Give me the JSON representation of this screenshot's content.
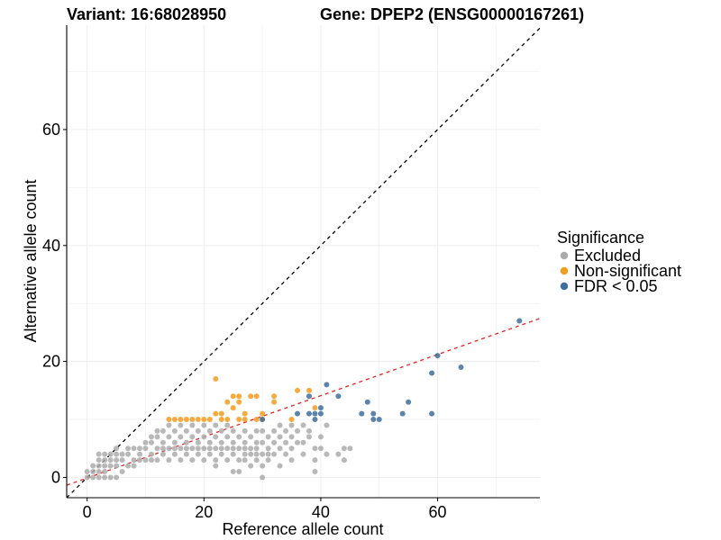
{
  "chart_data": {
    "type": "scatter",
    "title_variant": "Variant: 16:68028950",
    "title_gene": "Gene: DPEP2 (ENSG00000167261)",
    "xlabel": "Reference allele count",
    "ylabel": "Alternative allele count",
    "xlim": [
      -3.5,
      77.5
    ],
    "ylim": [
      -3.5,
      78
    ],
    "x_ticks": [
      0,
      20,
      40,
      60
    ],
    "y_ticks": [
      0,
      20,
      40,
      60
    ],
    "grid": true,
    "legend": {
      "title": "Significance",
      "position": "right",
      "entries": [
        {
          "label": "Excluded",
          "color": "#ababab"
        },
        {
          "label": "Non-significant",
          "color": "#f39c1f"
        },
        {
          "label": "FDR < 0.05",
          "color": "#3d6f9e"
        }
      ]
    },
    "reference_lines": [
      {
        "name": "identity-line",
        "slope": 1.0,
        "intercept": 0,
        "color": "#000000",
        "dash": "4,4"
      },
      {
        "name": "fitted-line",
        "slope": 0.355,
        "intercept": -0.1,
        "color": "#e8211a",
        "dash": "4,4"
      }
    ],
    "series": [
      {
        "name": "Non-significant",
        "color": "#f39c1f",
        "points": [
          [
            14,
            10
          ],
          [
            15,
            10
          ],
          [
            16,
            10
          ],
          [
            17,
            10
          ],
          [
            18,
            10
          ],
          [
            19,
            10
          ],
          [
            20,
            10
          ],
          [
            21,
            10
          ],
          [
            22,
            17
          ],
          [
            22,
            11
          ],
          [
            23,
            11
          ],
          [
            23,
            10
          ],
          [
            24,
            10
          ],
          [
            24,
            13
          ],
          [
            25,
            14
          ],
          [
            25,
            12
          ],
          [
            26,
            14
          ],
          [
            26,
            13
          ],
          [
            26,
            10
          ],
          [
            27,
            11
          ],
          [
            27,
            10
          ],
          [
            28,
            14
          ],
          [
            29,
            10
          ],
          [
            29,
            14
          ],
          [
            30,
            11
          ],
          [
            30,
            10
          ],
          [
            32,
            14
          ],
          [
            32,
            13
          ],
          [
            35,
            10
          ],
          [
            36,
            15
          ],
          [
            38,
            15
          ],
          [
            39,
            12
          ]
        ]
      },
      {
        "name": "FDR < 0.05",
        "color": "#3d6f9e",
        "points": [
          [
            30,
            10
          ],
          [
            36,
            11
          ],
          [
            38,
            14
          ],
          [
            38,
            11
          ],
          [
            39,
            11
          ],
          [
            39,
            10
          ],
          [
            40,
            11
          ],
          [
            40,
            12
          ],
          [
            41,
            16
          ],
          [
            43,
            14
          ],
          [
            47,
            11
          ],
          [
            48,
            13
          ],
          [
            49,
            11
          ],
          [
            49,
            10
          ],
          [
            50,
            10
          ],
          [
            54,
            11
          ],
          [
            55,
            13
          ],
          [
            59,
            11
          ],
          [
            59,
            18
          ],
          [
            60,
            21
          ],
          [
            64,
            19
          ],
          [
            74,
            27
          ]
        ]
      },
      {
        "name": "Excluded",
        "color": "#ababab",
        "points": [
          [
            0,
            0
          ],
          [
            0,
            1
          ],
          [
            1,
            0
          ],
          [
            1,
            1
          ],
          [
            1,
            2
          ],
          [
            2,
            0
          ],
          [
            2,
            1
          ],
          [
            2,
            2
          ],
          [
            2,
            3
          ],
          [
            2,
            4
          ],
          [
            3,
            0
          ],
          [
            3,
            1
          ],
          [
            3,
            2
          ],
          [
            3,
            3
          ],
          [
            3,
            4
          ],
          [
            4,
            0
          ],
          [
            4,
            2
          ],
          [
            4,
            3
          ],
          [
            4,
            4
          ],
          [
            5,
            0
          ],
          [
            5,
            2
          ],
          [
            5,
            3
          ],
          [
            5,
            4
          ],
          [
            5,
            5
          ],
          [
            6,
            1
          ],
          [
            6,
            3
          ],
          [
            6,
            4
          ],
          [
            7,
            2
          ],
          [
            7,
            4
          ],
          [
            7,
            5
          ],
          [
            8,
            2
          ],
          [
            8,
            3
          ],
          [
            8,
            5
          ],
          [
            9,
            3
          ],
          [
            9,
            4
          ],
          [
            9,
            5
          ],
          [
            10,
            3
          ],
          [
            10,
            5
          ],
          [
            10,
            6
          ],
          [
            11,
            3
          ],
          [
            11,
            4
          ],
          [
            11,
            6
          ],
          [
            11,
            7
          ],
          [
            12,
            3
          ],
          [
            12,
            5
          ],
          [
            12,
            7
          ],
          [
            12,
            8
          ],
          [
            13,
            4
          ],
          [
            13,
            6
          ],
          [
            13,
            8
          ],
          [
            14,
            3
          ],
          [
            14,
            5
          ],
          [
            14,
            7
          ],
          [
            14,
            9
          ],
          [
            15,
            4
          ],
          [
            15,
            6
          ],
          [
            15,
            8
          ],
          [
            16,
            3
          ],
          [
            16,
            5
          ],
          [
            16,
            7
          ],
          [
            16,
            9
          ],
          [
            17,
            4
          ],
          [
            17,
            6
          ],
          [
            17,
            8
          ],
          [
            18,
            3
          ],
          [
            18,
            5
          ],
          [
            18,
            7
          ],
          [
            18,
            9
          ],
          [
            19,
            4
          ],
          [
            19,
            6
          ],
          [
            19,
            8
          ],
          [
            20,
            3
          ],
          [
            20,
            5
          ],
          [
            20,
            7
          ],
          [
            20,
            9
          ],
          [
            21,
            4
          ],
          [
            21,
            6
          ],
          [
            21,
            8
          ],
          [
            22,
            2
          ],
          [
            22,
            3
          ],
          [
            22,
            5
          ],
          [
            22,
            7
          ],
          [
            22,
            9
          ],
          [
            23,
            4
          ],
          [
            23,
            6
          ],
          [
            23,
            8
          ],
          [
            24,
            3
          ],
          [
            24,
            5
          ],
          [
            24,
            7
          ],
          [
            24,
            9
          ],
          [
            25,
            1
          ],
          [
            25,
            4
          ],
          [
            25,
            6
          ],
          [
            25,
            8
          ],
          [
            26,
            1
          ],
          [
            26,
            3
          ],
          [
            26,
            5
          ],
          [
            26,
            7
          ],
          [
            27,
            3
          ],
          [
            27,
            4
          ],
          [
            27,
            6
          ],
          [
            27,
            8
          ],
          [
            28,
            2
          ],
          [
            28,
            4
          ],
          [
            28,
            5
          ],
          [
            28,
            7
          ],
          [
            29,
            3
          ],
          [
            29,
            5
          ],
          [
            29,
            6
          ],
          [
            29,
            8
          ],
          [
            30,
            2
          ],
          [
            30,
            4
          ],
          [
            30,
            6
          ],
          [
            30,
            8
          ],
          [
            30,
            0
          ],
          [
            31,
            3
          ],
          [
            31,
            5
          ],
          [
            31,
            7
          ],
          [
            32,
            4
          ],
          [
            32,
            6
          ],
          [
            32,
            8
          ],
          [
            33,
            2
          ],
          [
            33,
            5
          ],
          [
            33,
            7
          ],
          [
            33,
            9
          ],
          [
            34,
            4
          ],
          [
            34,
            6
          ],
          [
            34,
            8
          ],
          [
            35,
            3
          ],
          [
            35,
            5
          ],
          [
            35,
            7
          ],
          [
            35,
            9
          ],
          [
            36,
            6
          ],
          [
            36,
            8
          ],
          [
            37,
            4
          ],
          [
            37,
            6
          ],
          [
            37,
            9
          ],
          [
            38,
            7
          ],
          [
            38,
            8
          ],
          [
            39,
            1
          ],
          [
            39,
            3
          ],
          [
            39,
            5
          ],
          [
            40,
            5
          ],
          [
            40,
            7
          ],
          [
            41,
            4
          ],
          [
            41,
            9
          ],
          [
            43,
            4
          ],
          [
            44,
            5
          ],
          [
            44,
            3
          ],
          [
            45,
            5
          ],
          [
            13,
            5
          ],
          [
            15,
            5
          ],
          [
            17,
            5
          ],
          [
            19,
            5
          ],
          [
            21,
            5
          ],
          [
            23,
            5
          ],
          [
            25,
            5
          ],
          [
            27,
            5
          ],
          [
            29,
            4
          ],
          [
            31,
            4
          ]
        ]
      }
    ]
  }
}
